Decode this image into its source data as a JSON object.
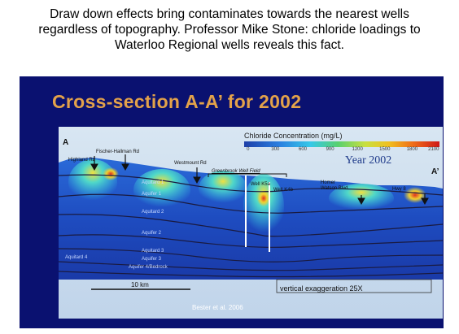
{
  "caption": {
    "line1": "Draw down effects bring contaminates towards the nearest wells",
    "line2": "regardless of topography. Professor Mike Stone: chloride loadings to",
    "line3": "Waterloo Regional wells reveals this fact."
  },
  "slide": {
    "title": "Cross-section A-A’ for 2002",
    "legend": {
      "title": "Chloride Concentration (mg/L)",
      "ticks": [
        "0",
        "300",
        "600",
        "900",
        "1200",
        "1500",
        "1800",
        "2100"
      ]
    },
    "year": "Year 2002",
    "corner_left": "A",
    "corner_right": "A’",
    "roads": {
      "fischer": "Fischer-Hallman Rd",
      "highland": "Highland Rd",
      "westmount": "Westmount Rd",
      "greenbrook": "Greenbrook Well Field",
      "homer": "Homer",
      "watson": "Watson Blvd.",
      "hwy": "Hwy 8"
    },
    "wells": {
      "k5a": "Well K5a",
      "k4b": "Well K4b"
    },
    "units": {
      "aquitard1": "Aquitard 1",
      "aquifer1": "Aquifer 1",
      "aquitard2": "Aquitard 2",
      "aquifer2": "Aquifer 2",
      "aquitard3": "Aquitard 3",
      "aquifer3": "Aquifer 3",
      "aquifer4": "Aquifer 4/Bedrock",
      "aquitard4": "Aquitard 4"
    },
    "scale": "10 km",
    "vertical_exaggeration": "vertical exaggeration 25X",
    "citation": "Bester et al. 2006"
  },
  "colors": {
    "slide_bg": "#0a1170",
    "title": "#e3a24a",
    "section_bg": "#2050c8",
    "plume": "#35c8e8"
  }
}
